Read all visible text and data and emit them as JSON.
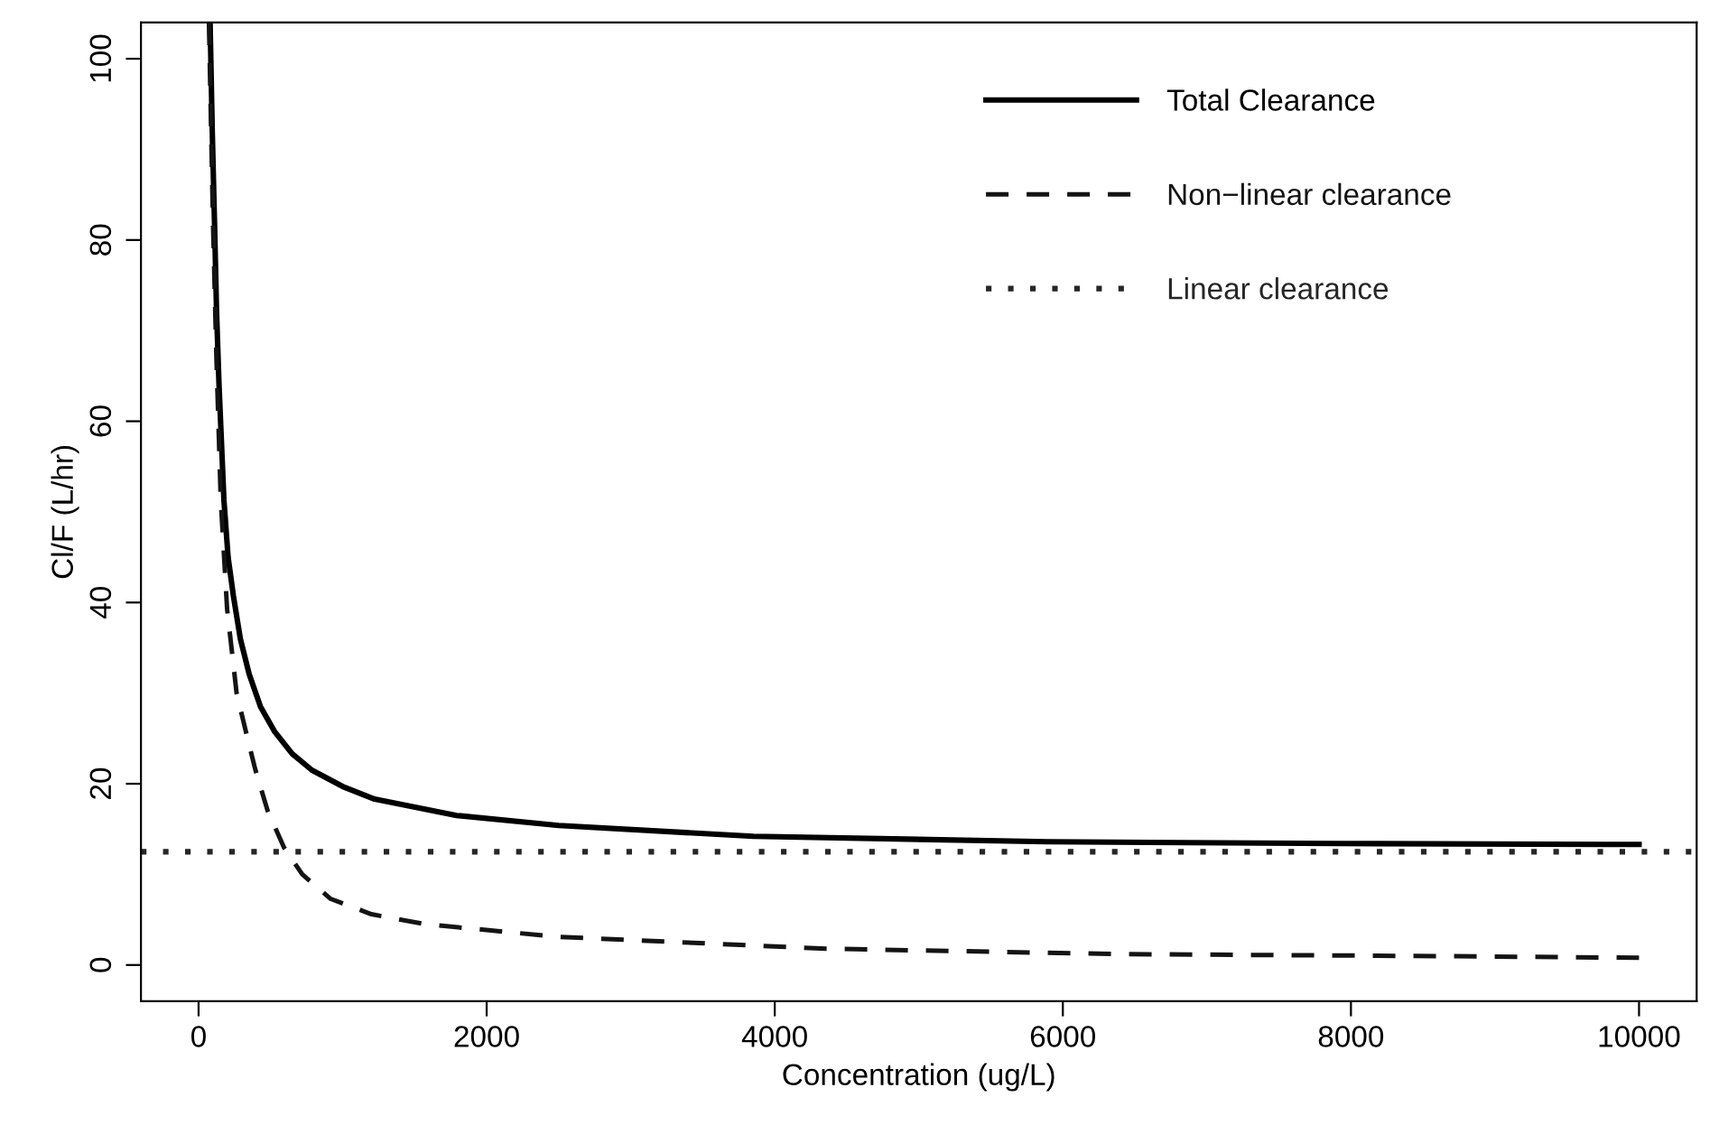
{
  "chart_data": {
    "type": "line",
    "xlabel": "Concentration (ug/L)",
    "ylabel": "Cl/F (L/hr)",
    "xlim": [
      -400,
      10400
    ],
    "ylim": [
      -4,
      104
    ],
    "xticks": [
      0,
      2000,
      4000,
      6000,
      8000,
      10000
    ],
    "yticks": [
      0,
      20,
      40,
      60,
      80,
      100
    ],
    "grid": false,
    "legend": "top right",
    "marker": "none",
    "series": [
      {
        "name": "Total Clearance",
        "color": "#000000",
        "line_style": "solid",
        "x": [
          80,
          95,
          111,
          125,
          142,
          176,
          205,
          242,
          290,
          351,
          430,
          526,
          650,
          787,
          1000,
          1222,
          1792,
          2500,
          3851,
          5889,
          7922,
          10000
        ],
        "values": [
          104,
          92,
          81.7,
          72,
          64,
          51.3,
          45,
          40.7,
          36,
          32.1,
          28.5,
          25.8,
          23.3,
          21.5,
          19.7,
          18.3,
          16.5,
          15.4,
          14.2,
          13.6,
          13.4,
          13.3
        ]
      },
      {
        "name": "Non−linear clearance",
        "color": "#141414",
        "line_style": "dashed",
        "x": [
          72,
          100,
          124,
          154,
          198,
          264,
          340,
          395,
          480,
          592,
          720,
          917,
          1200,
          1573,
          2500,
          4360,
          6394,
          8435,
          10000
        ],
        "values": [
          104,
          82,
          66.9,
          51.3,
          39.3,
          30,
          25,
          21.5,
          17,
          13,
          10,
          7.3,
          5.6,
          4.5,
          3.1,
          1.8,
          1.2,
          1.0,
          0.8
        ]
      },
      {
        "name": "Linear clearance",
        "color": "#262626",
        "line_style": "dotted",
        "x": [
          -400,
          10400
        ],
        "values": [
          12.5,
          12.5
        ]
      }
    ]
  }
}
